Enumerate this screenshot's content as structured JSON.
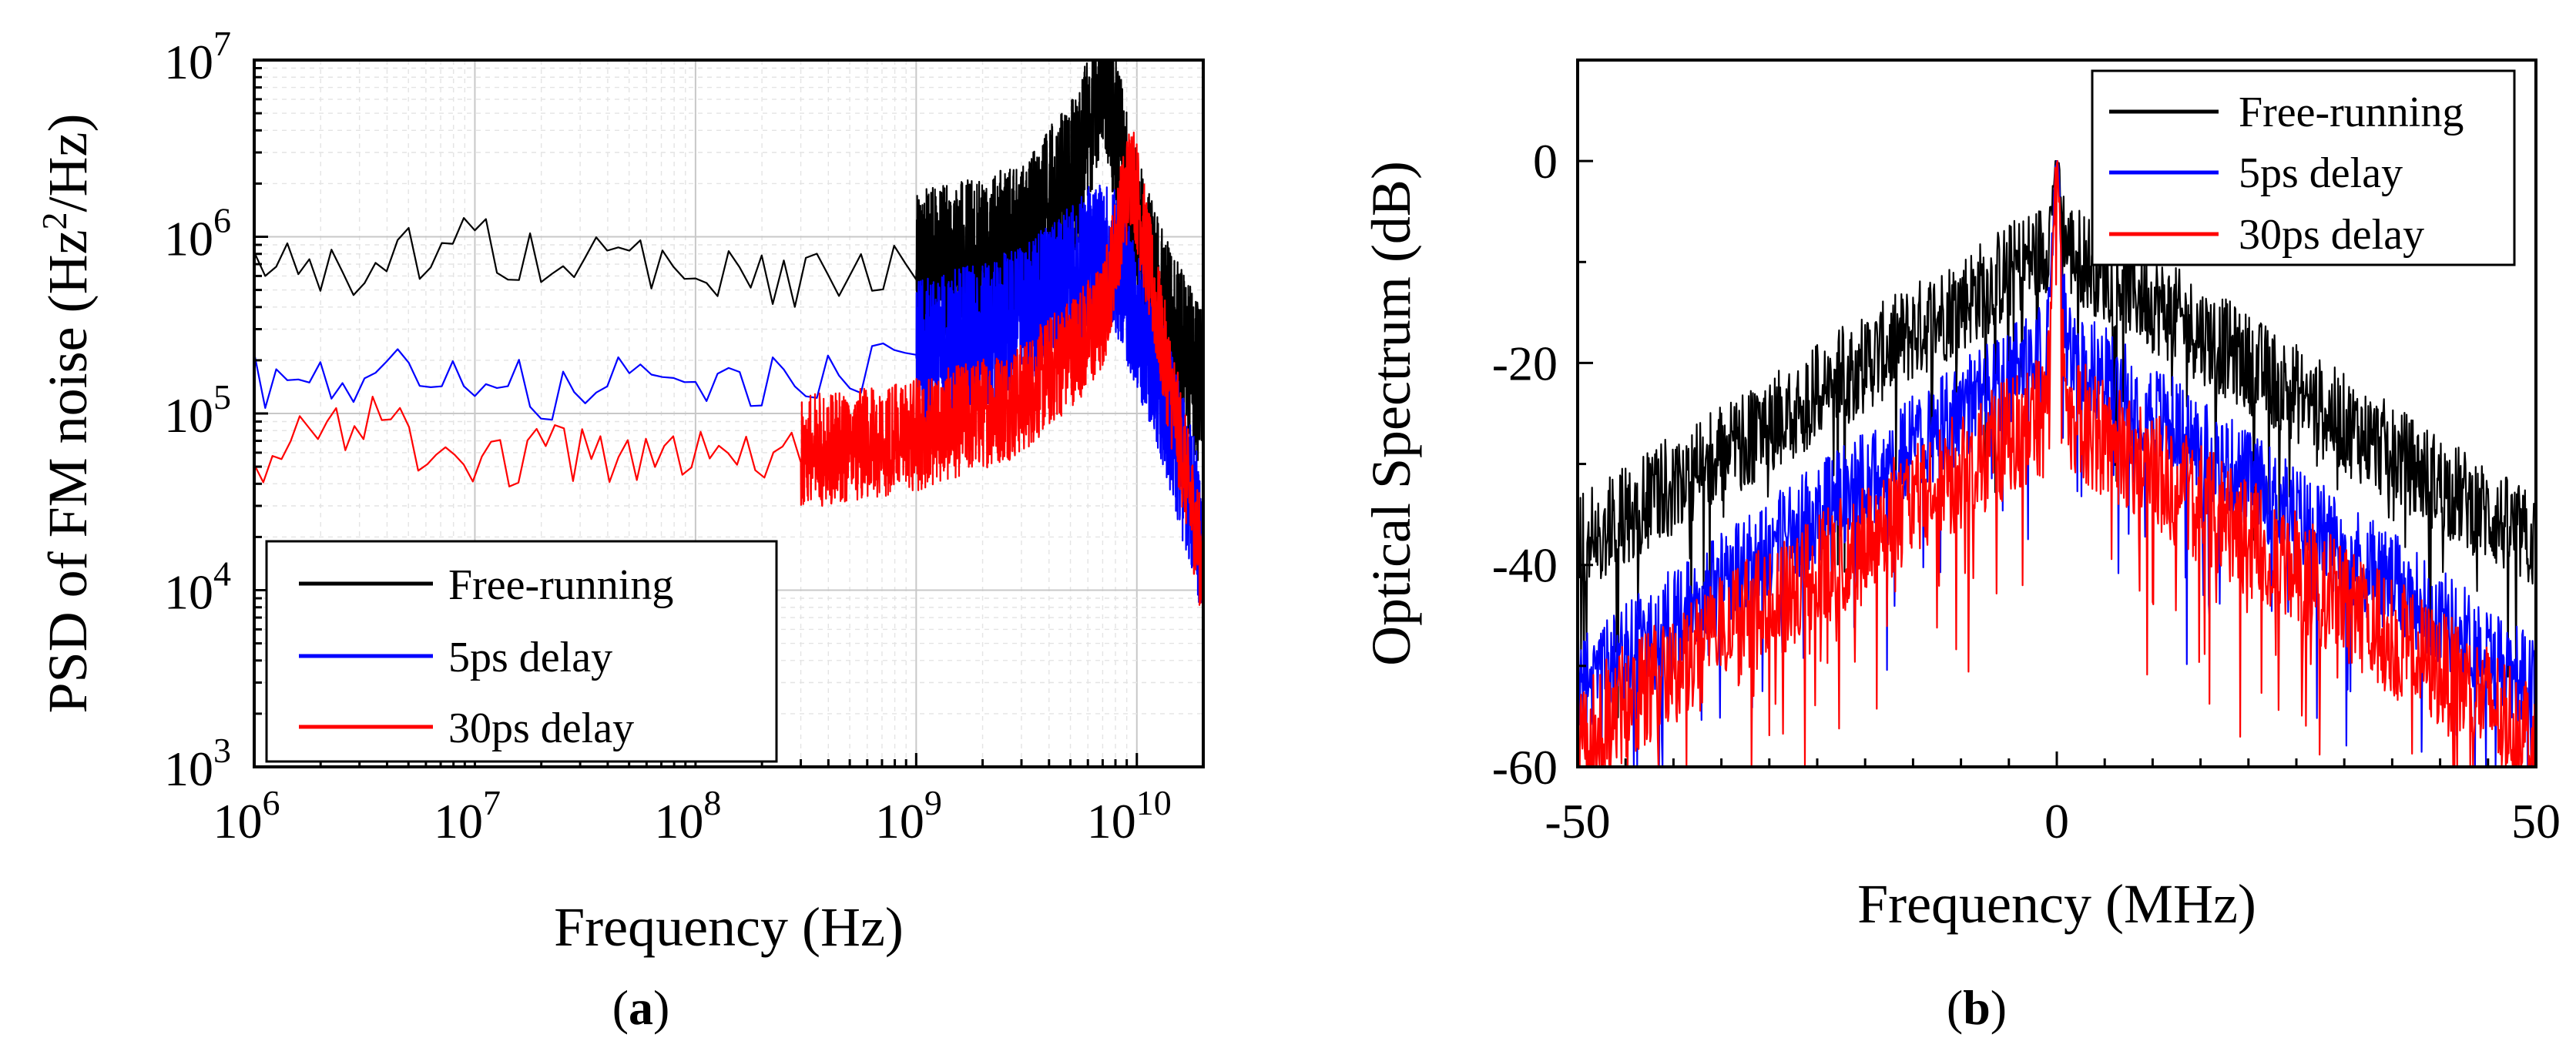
{
  "chart_data": [
    {
      "panel": "(a)",
      "panel_letter": "a",
      "type": "line",
      "x_scale": "log",
      "y_scale": "log",
      "xlabel": "Frequency (Hz)",
      "ylabel": "PSD of FM noise (Hz²/Hz)",
      "ylabel_parts": {
        "main": "PSD of FM noise (Hz",
        "sup": "2",
        "tail": "/Hz)"
      },
      "xlim": [
        1000000,
        20000000000
      ],
      "ylim": [
        1000,
        10000000
      ],
      "x_ticks": [
        {
          "value": 1000000,
          "base": "10",
          "exp": "6"
        },
        {
          "value": 10000000,
          "base": "10",
          "exp": "7"
        },
        {
          "value": 100000000,
          "base": "10",
          "exp": "8"
        },
        {
          "value": 1000000000,
          "base": "10",
          "exp": "9"
        },
        {
          "value": 10000000000,
          "base": "10",
          "exp": "10"
        }
      ],
      "y_ticks": [
        {
          "value": 1000,
          "base": "10",
          "exp": "3"
        },
        {
          "value": 10000,
          "base": "10",
          "exp": "4"
        },
        {
          "value": 100000,
          "base": "10",
          "exp": "5"
        },
        {
          "value": 1000000,
          "base": "10",
          "exp": "6"
        },
        {
          "value": 10000000,
          "base": "10",
          "exp": "7"
        }
      ],
      "grid": true,
      "legend_position": "bottom-left",
      "series": [
        {
          "name": "Free-running",
          "color": "#000000",
          "points": [
            [
              1000000,
              720000
            ],
            [
              2000000,
              680000
            ],
            [
              4000000,
              520000
            ],
            [
              5000000,
              900000
            ],
            [
              7000000,
              640000
            ],
            [
              9000000,
              1050000
            ],
            [
              15000000,
              700000
            ],
            [
              30000000,
              850000
            ],
            [
              100000000,
              640000
            ],
            [
              300000000,
              560000
            ],
            [
              1000000000,
              640000
            ],
            [
              3000000000,
              900000
            ],
            [
              5500000000,
              2500000
            ],
            [
              7000000000,
              9500000
            ],
            [
              9000000000,
              2000000
            ],
            [
              12000000000,
              500000
            ],
            [
              20000000000,
              130000
            ]
          ],
          "spread": [
            1000000000,
            0.45
          ]
        },
        {
          "name": "5ps delay",
          "color": "#0000ff",
          "points": [
            [
              1000000,
              155000
            ],
            [
              2000000,
              150000
            ],
            [
              3000000,
              110000
            ],
            [
              4000000,
              190000
            ],
            [
              7000000,
              120000
            ],
            [
              10000000,
              180000
            ],
            [
              20000000,
              125000
            ],
            [
              100000000,
              170000
            ],
            [
              300000000,
              150000
            ],
            [
              1000000000,
              210000
            ],
            [
              3000000000,
              330000
            ],
            [
              6500000000,
              800000
            ],
            [
              8000000000,
              700000
            ],
            [
              12000000000,
              200000
            ],
            [
              20000000000,
              18000
            ]
          ],
          "spread": [
            1000000000,
            0.42
          ]
        },
        {
          "name": "30ps delay",
          "color": "#ff0000",
          "points": [
            [
              1000000,
              50000
            ],
            [
              2000000,
              100000
            ],
            [
              3000000,
              65000
            ],
            [
              4000000,
              140000
            ],
            [
              6000000,
              55000
            ],
            [
              8000000,
              85000
            ],
            [
              10000000,
              45000
            ],
            [
              20000000,
              60000
            ],
            [
              100000000,
              55000
            ],
            [
              300000000,
              60000
            ],
            [
              1000000000,
              75000
            ],
            [
              3000000000,
              120000
            ],
            [
              7000000000,
              340000
            ],
            [
              8500000000,
              1300000
            ],
            [
              9500000000,
              2500000
            ],
            [
              12000000000,
              450000
            ],
            [
              20000000000,
              13000
            ]
          ],
          "spread": [
            300000000,
            0.32
          ]
        }
      ]
    },
    {
      "panel": "(b)",
      "panel_letter": "b",
      "type": "line",
      "xlabel": "Frequency (MHz)",
      "ylabel": "Optical Spectrum (dB)",
      "xlim": [
        -50,
        50
      ],
      "ylim": [
        -60,
        10
      ],
      "x_ticks": [
        {
          "value": -50,
          "label": "-50"
        },
        {
          "value": 0,
          "label": "0"
        },
        {
          "value": 50,
          "label": "50"
        }
      ],
      "y_ticks": [
        {
          "value": 0,
          "label": "0"
        },
        {
          "value": -20,
          "label": "-20"
        },
        {
          "value": -40,
          "label": "-40"
        },
        {
          "value": -60,
          "label": "-60"
        }
      ],
      "grid": false,
      "legend_position": "top-right",
      "series": [
        {
          "name": "Free-running",
          "color": "#000000",
          "edge_level": -38,
          "center_level": -8,
          "jitter": 5
        },
        {
          "name": "5ps delay",
          "color": "#0000ff",
          "edge_level": -52,
          "center_level": -18,
          "jitter": 5
        },
        {
          "name": "30ps delay",
          "color": "#ff0000",
          "edge_level": -57,
          "center_level": -24,
          "jitter": 6
        }
      ]
    }
  ]
}
